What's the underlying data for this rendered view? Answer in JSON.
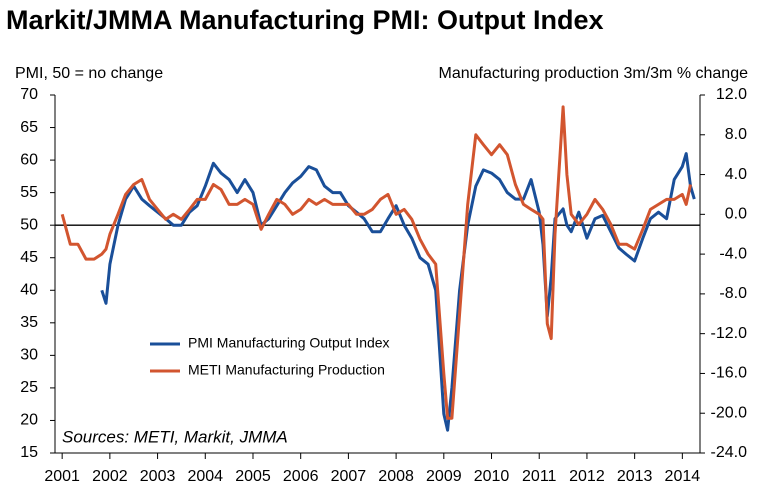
{
  "chart_data": {
    "type": "line",
    "title": "Markit/JMMA Manufacturing PMI: Output Index",
    "y_label": "PMI, 50 = no change",
    "y2_label": "Manufacturing production 3m/3m % change",
    "annotation": "Sources: METI, Markit, JMMA",
    "reference_line": 50,
    "x": [
      2001.0,
      2001.17,
      2001.33,
      2001.5,
      2001.67,
      2001.83,
      2001.92,
      2002.0,
      2002.17,
      2002.33,
      2002.5,
      2002.67,
      2002.83,
      2003.0,
      2003.17,
      2003.33,
      2003.5,
      2003.67,
      2003.83,
      2004.0,
      2004.17,
      2004.33,
      2004.5,
      2004.67,
      2004.83,
      2005.0,
      2005.17,
      2005.33,
      2005.5,
      2005.67,
      2005.83,
      2006.0,
      2006.17,
      2006.33,
      2006.5,
      2006.67,
      2006.83,
      2007.0,
      2007.17,
      2007.33,
      2007.5,
      2007.67,
      2007.83,
      2008.0,
      2008.17,
      2008.33,
      2008.5,
      2008.67,
      2008.83,
      2009.0,
      2009.08,
      2009.17,
      2009.33,
      2009.5,
      2009.67,
      2009.83,
      2010.0,
      2010.17,
      2010.33,
      2010.5,
      2010.67,
      2010.83,
      2011.0,
      2011.08,
      2011.17,
      2011.25,
      2011.33,
      2011.5,
      2011.58,
      2011.67,
      2011.83,
      2012.0,
      2012.17,
      2012.33,
      2012.5,
      2012.67,
      2012.83,
      2013.0,
      2013.17,
      2013.33,
      2013.5,
      2013.67,
      2013.83,
      2014.0,
      2014.08,
      2014.17,
      2014.25
    ],
    "series": [
      {
        "name": "PMI Manufacturing Output Index",
        "color": "#1a4f99",
        "axis": "y",
        "values": [
          null,
          null,
          null,
          null,
          null,
          40,
          38,
          44,
          50,
          54,
          56,
          54,
          53,
          52,
          51,
          50,
          50,
          52,
          53,
          56,
          59.5,
          58,
          57,
          55,
          57,
          55,
          50,
          51,
          53,
          55,
          56.5,
          57.5,
          59,
          58.5,
          56,
          55,
          55,
          53,
          52,
          51,
          49,
          49,
          51,
          53,
          50,
          48,
          45,
          44,
          40,
          21,
          18.5,
          25,
          40,
          50,
          56,
          58.5,
          58,
          57,
          55,
          54,
          54,
          57,
          52,
          47,
          36,
          42,
          51,
          52.5,
          50,
          49,
          52,
          48,
          51,
          51.5,
          49,
          46.5,
          45.5,
          44.5,
          48,
          51,
          52,
          51,
          57,
          59,
          61,
          56,
          54
        ]
      },
      {
        "name": "METI Manufacturing Production",
        "color": "#d2552f",
        "axis": "y2",
        "values": [
          0,
          -3,
          -3,
          -4.5,
          -4.5,
          -4,
          -3.5,
          -2,
          0,
          2,
          3,
          3.5,
          1.5,
          0.5,
          -0.5,
          0,
          -0.5,
          0.5,
          1.5,
          1.5,
          3,
          2.5,
          1,
          1,
          1.5,
          1,
          -1.5,
          0,
          1.5,
          1,
          0,
          0.5,
          1.5,
          1,
          1.5,
          1,
          1,
          1,
          0,
          0,
          0.5,
          1.5,
          2,
          0,
          0.5,
          -0.5,
          -2.5,
          -4,
          -5,
          -16,
          -20.5,
          -20.5,
          -10,
          1,
          8,
          7,
          6,
          7,
          6,
          3,
          1,
          0.5,
          0,
          -0.5,
          -11,
          -12.5,
          -2,
          10.8,
          4,
          0,
          -1,
          0,
          1.5,
          0.5,
          -1,
          -3,
          -3,
          -3.5,
          -1.5,
          0.5,
          1,
          1.5,
          1.5,
          2,
          1,
          3,
          null
        ]
      }
    ],
    "xlim": [
      2000.85,
      2014.37
    ],
    "xticks": [
      2001,
      2002,
      2003,
      2004,
      2005,
      2006,
      2007,
      2008,
      2009,
      2010,
      2011,
      2012,
      2013,
      2014
    ],
    "ylim": [
      15,
      70
    ],
    "yticks": [
      15,
      20,
      25,
      30,
      35,
      40,
      45,
      50,
      55,
      60,
      65,
      70
    ],
    "y2lim": [
      -24,
      12
    ],
    "y2ticks": [
      {
        "value": -24,
        "label": "-24.0"
      },
      {
        "value": -20,
        "label": "-20.0"
      },
      {
        "value": -16,
        "label": "-16.0"
      },
      {
        "value": -12,
        "label": "-12.0"
      },
      {
        "value": -8,
        "label": "-8.0"
      },
      {
        "value": -4,
        "label": "-4.0"
      },
      {
        "value": 0,
        "label": "0.0"
      },
      {
        "value": 4,
        "label": "4.0"
      },
      {
        "value": 8,
        "label": "8.0"
      },
      {
        "value": 12,
        "label": "12.0"
      }
    ],
    "grid": false
  }
}
